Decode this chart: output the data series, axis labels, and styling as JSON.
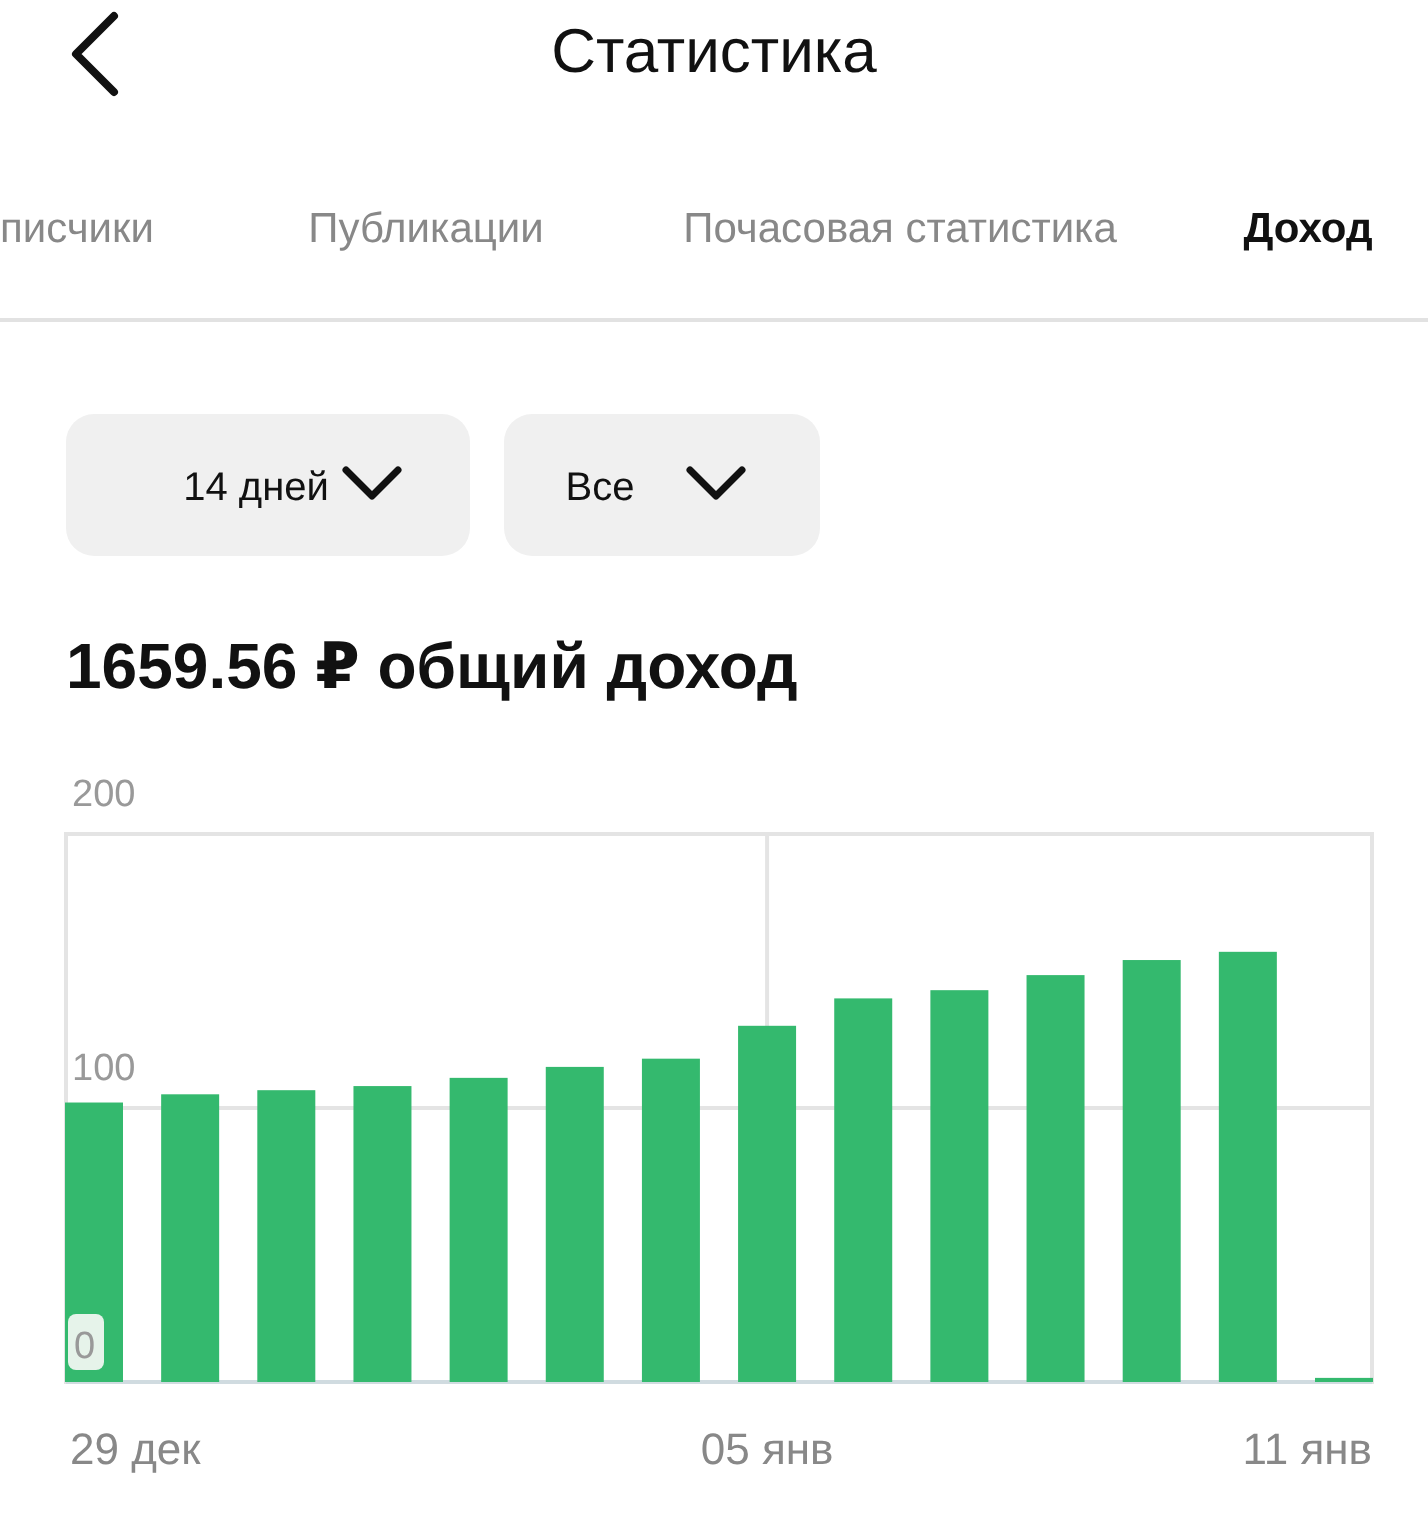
{
  "chart_data": {
    "type": "bar",
    "title": "Статистика",
    "subtitle": "1659.56 ₽ общий доход",
    "annotations": [
      "писчики",
      "Публикации",
      "Почасовая статистика",
      "Доход",
      "14 дней",
      "Все"
    ],
    "categories": [
      "29 дек",
      null,
      null,
      null,
      null,
      null,
      null,
      "05 янв",
      null,
      null,
      null,
      null,
      null,
      "11 янв"
    ],
    "values": [
      102,
      105,
      106.5,
      108,
      111,
      115,
      118,
      130,
      140,
      143,
      148.5,
      154,
      157,
      1.5
    ],
    "color": "#34b96e",
    "ylim": [
      0,
      200
    ],
    "yticks": [
      0,
      100,
      200
    ],
    "grid": true
  }
}
